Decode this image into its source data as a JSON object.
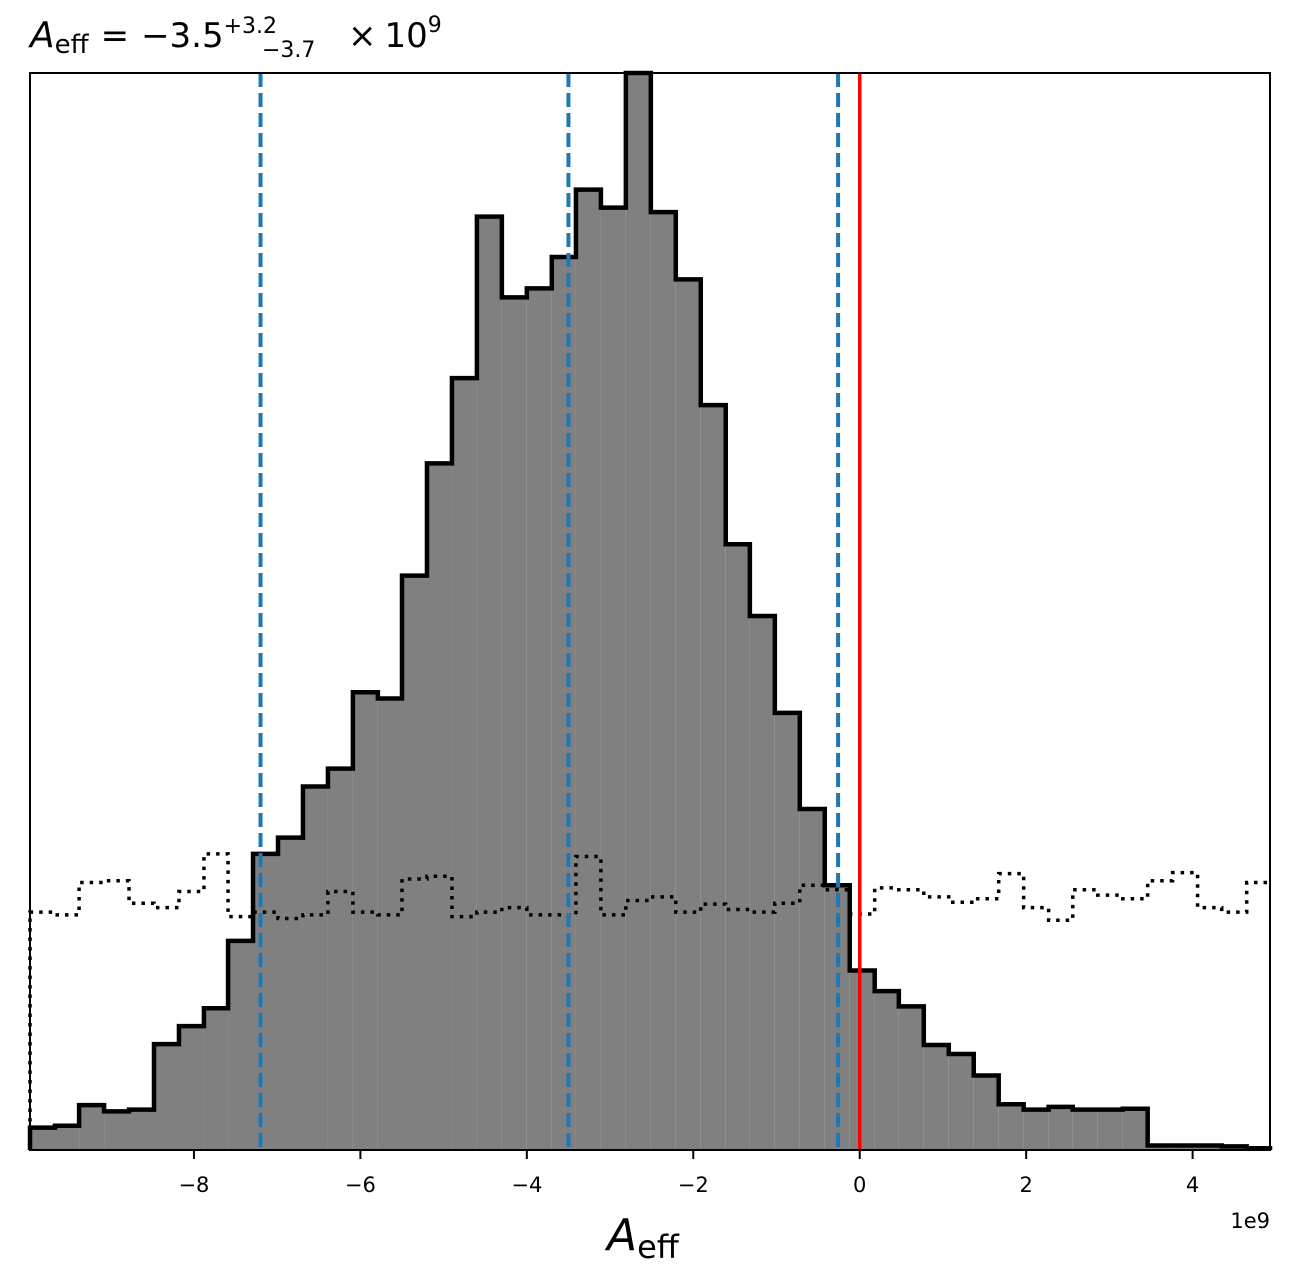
{
  "chart_data": {
    "type": "histogram",
    "title": {
      "symbol": "A",
      "subscript": "eff",
      "equals": "=",
      "median": "−3.5",
      "upper_err": "+3.2",
      "lower_err": "−3.7",
      "times": "×",
      "scale_base": "10",
      "scale_exp": "9"
    },
    "xlabel": {
      "symbol": "A",
      "subscript": "eff"
    },
    "ylabel": "",
    "offset_label": "1e9",
    "xlim": [
      -9.97,
      4.93
    ],
    "ylim": [
      0,
      1200
    ],
    "x_ticks": [
      -8,
      -6,
      -4,
      -2,
      0,
      2,
      4
    ],
    "x_tick_labels": [
      "−8",
      "−6",
      "−4",
      "−2",
      "0",
      "2",
      "4"
    ],
    "y_ticks_visible": false,
    "grid": false,
    "fill_color": "#808080",
    "edge_color": "#000000",
    "series": [
      {
        "style": "filled-step",
        "bin_edges": [
          -9.97,
          -9.67,
          -9.38,
          -9.08,
          -8.78,
          -8.48,
          -8.18,
          -7.88,
          -7.59,
          -7.29,
          -6.99,
          -6.69,
          -6.39,
          -6.09,
          -5.79,
          -5.5,
          -5.2,
          -4.9,
          -4.6,
          -4.3,
          -4.0,
          -3.7,
          -3.41,
          -3.11,
          -2.81,
          -2.51,
          -2.21,
          -1.91,
          -1.61,
          -1.32,
          -1.02,
          -0.72,
          -0.42,
          -0.12,
          0.18,
          0.47,
          0.77,
          1.07,
          1.37,
          1.67,
          1.97,
          2.27,
          2.56,
          2.86,
          3.16,
          3.46,
          3.76,
          4.06,
          4.35,
          4.65,
          4.93
        ],
        "counts": [
          25,
          27,
          50,
          43,
          45,
          118,
          138,
          158,
          233,
          330,
          348,
          405,
          425,
          510,
          503,
          640,
          765,
          860,
          1040,
          950,
          960,
          995,
          1070,
          1050,
          1200,
          1045,
          970,
          830,
          675,
          595,
          487,
          380,
          295,
          200,
          177,
          160,
          117,
          107,
          83,
          51,
          45,
          48,
          45,
          45,
          46,
          5,
          5,
          5,
          4,
          2
        ]
      },
      {
        "style": "dotted-step",
        "bin_edges": [
          -9.97,
          -9.67,
          -9.38,
          -9.08,
          -8.78,
          -8.48,
          -8.18,
          -7.88,
          -7.59,
          -7.29,
          -6.99,
          -6.69,
          -6.39,
          -6.09,
          -5.79,
          -5.5,
          -5.2,
          -4.9,
          -4.6,
          -4.3,
          -4.0,
          -3.7,
          -3.41,
          -3.11,
          -2.81,
          -2.51,
          -2.21,
          -1.91,
          -1.61,
          -1.32,
          -1.02,
          -0.72,
          -0.42,
          -0.12,
          0.18,
          0.47,
          0.77,
          1.07,
          1.37,
          1.67,
          1.97,
          2.27,
          2.56,
          2.86,
          3.16,
          3.46,
          3.76,
          4.06,
          4.35,
          4.65,
          4.93
        ],
        "counts": [
          265,
          262,
          298,
          300,
          275,
          270,
          288,
          330,
          260,
          265,
          258,
          262,
          288,
          265,
          262,
          302,
          305,
          260,
          265,
          270,
          262,
          262,
          327,
          262,
          278,
          282,
          265,
          274,
          268,
          265,
          275,
          295,
          290,
          263,
          292,
          290,
          282,
          276,
          280,
          308,
          270,
          256,
          290,
          284,
          280,
          300,
          309,
          270,
          265,
          298
        ]
      }
    ],
    "vertical_lines": [
      {
        "x": -7.2,
        "style": "dashed",
        "color": "#1f77b4",
        "role": "lower quantile"
      },
      {
        "x": -3.5,
        "style": "dashed",
        "color": "#1f77b4",
        "role": "median"
      },
      {
        "x": -0.26,
        "style": "dashed",
        "color": "#1f77b4",
        "role": "upper quantile"
      },
      {
        "x": 0.0,
        "style": "solid",
        "color": "#ff0000",
        "role": "reference"
      }
    ]
  }
}
